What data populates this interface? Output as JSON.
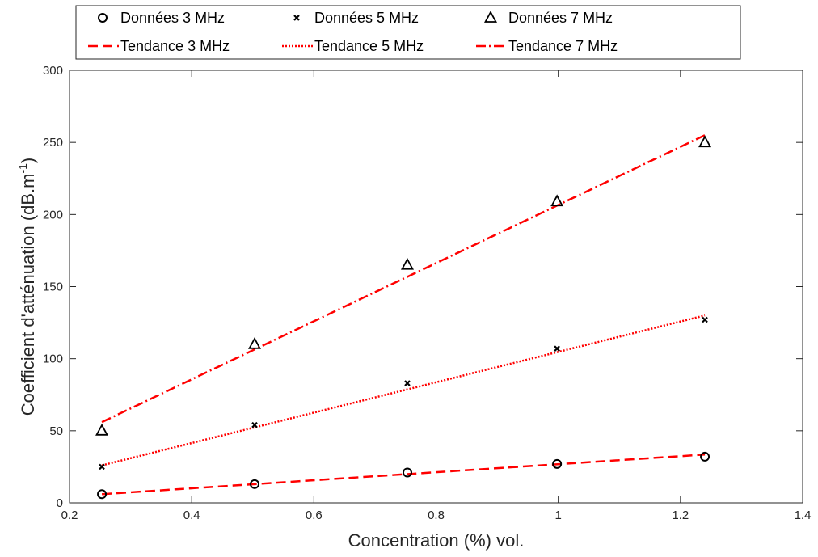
{
  "chart_data": {
    "type": "scatter",
    "xlabel": "Concentration (%) vol.",
    "ylabel": "Coefficient d'atténuation (dB.m",
    "ylabel_sup": "-1",
    "ylabel_close": ")",
    "xlim": [
      0.2,
      1.4
    ],
    "ylim": [
      0,
      300
    ],
    "xticks": [
      0.2,
      0.4,
      0.6,
      0.8,
      1.0,
      1.2,
      1.4
    ],
    "xtick_labels": [
      "0.2",
      "0.4",
      "0.6",
      "0.8",
      "1",
      "1.2",
      "1.4"
    ],
    "yticks": [
      0,
      50,
      100,
      150,
      200,
      250,
      300
    ],
    "ytick_labels": [
      "0",
      "50",
      "100",
      "150",
      "200",
      "250",
      "300"
    ],
    "grid": false,
    "legend_position": "top",
    "series": [
      {
        "name": "Données 3 MHz",
        "kind": "markers",
        "marker": "circle",
        "color": "#000000",
        "x": [
          0.253,
          0.503,
          0.753,
          0.998,
          1.24
        ],
        "y": [
          6,
          13,
          21,
          27,
          32
        ]
      },
      {
        "name": "Données 5 MHz",
        "kind": "markers",
        "marker": "x",
        "color": "#000000",
        "x": [
          0.253,
          0.503,
          0.753,
          0.998,
          1.24
        ],
        "y": [
          25,
          54,
          83,
          107,
          127
        ]
      },
      {
        "name": "Données 7 MHz",
        "kind": "markers",
        "marker": "triangle",
        "color": "#000000",
        "x": [
          0.253,
          0.503,
          0.753,
          0.998,
          1.24
        ],
        "y": [
          50,
          110,
          165,
          209,
          250
        ]
      },
      {
        "name": "Tendance 3 MHz",
        "kind": "line",
        "dash": "dashed",
        "color": "#ff0000",
        "x": [
          0.253,
          1.24
        ],
        "y": [
          6,
          33.5
        ]
      },
      {
        "name": "Tendance 5 MHz",
        "kind": "line",
        "dash": "dotted",
        "color": "#ff0000",
        "x": [
          0.253,
          1.24
        ],
        "y": [
          26,
          130
        ]
      },
      {
        "name": "Tendance 7 MHz",
        "kind": "line",
        "dash": "dashdot",
        "color": "#ff0000",
        "x": [
          0.253,
          1.24
        ],
        "y": [
          56,
          255
        ]
      }
    ]
  }
}
